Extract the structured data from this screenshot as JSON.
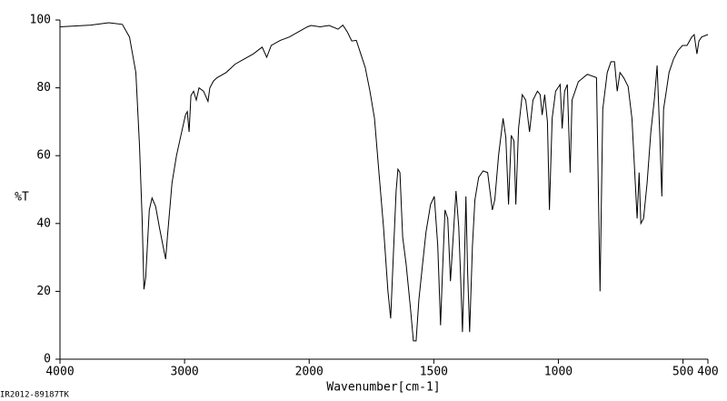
{
  "chart_data": {
    "type": "line",
    "xlabel": "Wavenumber[cm-1]",
    "ylabel": "%T",
    "footer": "IR2012-89187TK",
    "xlim": [
      4000,
      400
    ],
    "ylim": [
      0,
      100
    ],
    "x_break": 2000,
    "x_break_expansion": 2,
    "xticks": [
      4000,
      3000,
      2000,
      1500,
      1000,
      500,
      400
    ],
    "yticks": [
      0,
      20,
      40,
      60,
      80,
      100
    ],
    "color": "#000000",
    "x": [
      4000,
      3754,
      3609,
      3500,
      3442,
      3391,
      3362,
      3341,
      3326,
      3312,
      3283,
      3261,
      3232,
      3203,
      3174,
      3152,
      3138,
      3101,
      3065,
      3029,
      2993,
      2978,
      2964,
      2949,
      2928,
      2906,
      2884,
      2848,
      2812,
      2797,
      2768,
      2739,
      2667,
      2594,
      2522,
      2449,
      2377,
      2341,
      2304,
      2232,
      2159,
      2087,
      2014,
      1993,
      1956,
      1920,
      1884,
      1865,
      1847,
      1829,
      1811,
      1793,
      1775,
      1756,
      1738,
      1720,
      1702,
      1684,
      1673,
      1662,
      1651,
      1644,
      1636,
      1625,
      1611,
      1593,
      1582,
      1571,
      1560,
      1545,
      1531,
      1513,
      1498,
      1484,
      1473,
      1465,
      1455,
      1444,
      1433,
      1422,
      1411,
      1400,
      1393,
      1385,
      1378,
      1371,
      1364,
      1356,
      1345,
      1335,
      1320,
      1302,
      1284,
      1265,
      1255,
      1240,
      1222,
      1211,
      1200,
      1189,
      1178,
      1171,
      1160,
      1145,
      1131,
      1116,
      1102,
      1084,
      1073,
      1065,
      1055,
      1044,
      1036,
      1025,
      1011,
      993,
      985,
      975,
      964,
      953,
      945,
      920,
      884,
      847,
      833,
      822,
      804,
      789,
      775,
      764,
      753,
      738,
      720,
      705,
      684,
      676,
      669,
      658,
      644,
      629,
      615,
      604,
      593,
      585,
      578,
      567,
      556,
      538,
      520,
      502,
      484,
      465,
      455,
      444,
      436,
      425,
      400
    ],
    "values": [
      98,
      98.5,
      99.2,
      98.7,
      95,
      84.5,
      63,
      41.5,
      20.6,
      24,
      44,
      47.5,
      45,
      39,
      33.5,
      29.5,
      36,
      52,
      60,
      66,
      72,
      73,
      67,
      77.7,
      79,
      76.4,
      80,
      79,
      76,
      80,
      82,
      83,
      84.5,
      87,
      88.5,
      90,
      92,
      89,
      92.5,
      94,
      95,
      96.5,
      98,
      98.4,
      98,
      98.4,
      97.3,
      98.5,
      96.5,
      93.8,
      94,
      90,
      86,
      79,
      71,
      55,
      39,
      20,
      12,
      31,
      49.6,
      56,
      55,
      36,
      28,
      14.7,
      5.4,
      5.4,
      17.4,
      28,
      37.5,
      45.6,
      48,
      33.5,
      10,
      25.5,
      44,
      41.5,
      23,
      36,
      49.6,
      39,
      25.5,
      8,
      25.5,
      48,
      25.5,
      8,
      33.5,
      47,
      53.6,
      55.5,
      55,
      44,
      47,
      60,
      71,
      65.4,
      45.6,
      66,
      64.3,
      45.6,
      68,
      78,
      76.4,
      67,
      76.4,
      79,
      78,
      72,
      78,
      70,
      44,
      71,
      79,
      81,
      68,
      79,
      81,
      55,
      76.4,
      81.8,
      84,
      83,
      20,
      73.7,
      84.5,
      87.7,
      87.7,
      79,
      84.5,
      83,
      80.4,
      71,
      41.5,
      55,
      40,
      41.5,
      52,
      67,
      76.4,
      86.6,
      65.7,
      48,
      73.7,
      79,
      84.5,
      88.5,
      91,
      92.5,
      92.5,
      95,
      95.7,
      90,
      93.8,
      95,
      95.7
    ]
  }
}
